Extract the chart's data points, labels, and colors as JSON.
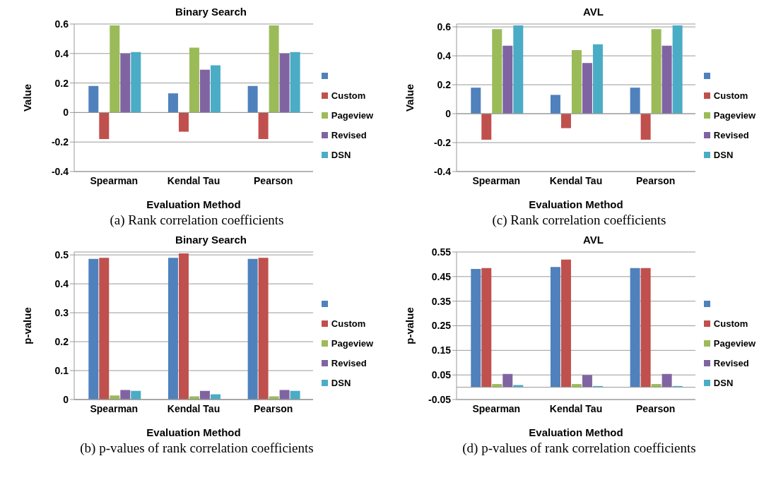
{
  "chart_data": [
    {
      "type": "bar",
      "title": "Binary Search",
      "xlabel": "Evaluation Method",
      "ylabel": "Value",
      "categories": [
        "Spearman",
        "Kendal Tau",
        "Pearson"
      ],
      "series": [
        {
          "color": "#4f81bd",
          "values": [
            0.18,
            0.13,
            0.18
          ]
        },
        {
          "name": "Custom",
          "color": "#c0504d",
          "values": [
            -0.18,
            -0.13,
            -0.18
          ]
        },
        {
          "name": "Pageview",
          "color": "#9bbb59",
          "values": [
            0.59,
            0.44,
            0.59
          ]
        },
        {
          "name": "Revised",
          "color": "#8064a2",
          "values": [
            0.4,
            0.29,
            0.4
          ]
        },
        {
          "name": "DSN",
          "color": "#4bacc6",
          "values": [
            0.41,
            0.32,
            0.41
          ]
        }
      ],
      "ylim": [
        -0.4,
        0.6
      ],
      "yticks": [
        -0.4,
        -0.2,
        0,
        0.2,
        0.4,
        0.6
      ],
      "grid": "y",
      "legend": "right",
      "annotations": [
        "(a) Rank correlation coefficients"
      ]
    },
    {
      "type": "bar",
      "title": "AVL",
      "xlabel": "Evaluation Method",
      "ylabel": "Value",
      "categories": [
        "Spearman",
        "Kendal Tau",
        "Pearson"
      ],
      "series": [
        {
          "color": "#4f81bd",
          "values": [
            0.18,
            0.13,
            0.18
          ]
        },
        {
          "name": "Custom",
          "color": "#c0504d",
          "values": [
            -0.18,
            -0.1,
            -0.18
          ]
        },
        {
          "name": "Pageview",
          "color": "#9bbb59",
          "values": [
            0.585,
            0.44,
            0.585
          ]
        },
        {
          "name": "Revised",
          "color": "#8064a2",
          "values": [
            0.47,
            0.35,
            0.47
          ]
        },
        {
          "name": "DSN",
          "color": "#4bacc6",
          "values": [
            0.61,
            0.48,
            0.61
          ]
        }
      ],
      "ylim": [
        -0.4,
        0.62
      ],
      "yticks": [
        -0.4,
        -0.2,
        0,
        0.2,
        0.4,
        0.6
      ],
      "grid": "y",
      "legend": "right",
      "annotations": [
        "(c) Rank correlation coefficients"
      ]
    },
    {
      "type": "bar",
      "title": "Binary Search",
      "xlabel": "Evaluation Method",
      "ylabel": "p-value",
      "categories": [
        "Spearman",
        "Kendal Tau",
        "Pearson"
      ],
      "series": [
        {
          "color": "#4f81bd",
          "values": [
            0.486,
            0.49,
            0.486
          ]
        },
        {
          "name": "Custom",
          "color": "#c0504d",
          "values": [
            0.49,
            0.505,
            0.49
          ]
        },
        {
          "name": "Pageview",
          "color": "#9bbb59",
          "values": [
            0.014,
            0.011,
            0.011
          ]
        },
        {
          "name": "Revised",
          "color": "#8064a2",
          "values": [
            0.033,
            0.03,
            0.033
          ]
        },
        {
          "name": "DSN",
          "color": "#4bacc6",
          "values": [
            0.03,
            0.018,
            0.03
          ]
        }
      ],
      "ylim": [
        0,
        0.51
      ],
      "yticks": [
        0,
        0.1,
        0.2,
        0.3,
        0.4,
        0.5
      ],
      "grid": "y",
      "legend": "right",
      "annotations": [
        "(b) p-values of rank correlation coefficients"
      ]
    },
    {
      "type": "bar",
      "title": "AVL",
      "xlabel": "Evaluation Method",
      "ylabel": "p-value",
      "categories": [
        "Spearman",
        "Kendal Tau",
        "Pearson"
      ],
      "series": [
        {
          "color": "#4f81bd",
          "values": [
            0.481,
            0.489,
            0.485
          ]
        },
        {
          "name": "Custom",
          "color": "#c0504d",
          "values": [
            0.485,
            0.519,
            0.485
          ]
        },
        {
          "name": "Pageview",
          "color": "#9bbb59",
          "values": [
            0.013,
            0.013,
            0.013
          ]
        },
        {
          "name": "Revised",
          "color": "#8064a2",
          "values": [
            0.054,
            0.05,
            0.054
          ]
        },
        {
          "name": "DSN",
          "color": "#4bacc6",
          "values": [
            0.009,
            0.005,
            0.005
          ]
        }
      ],
      "ylim": [
        -0.05,
        0.55
      ],
      "yticks": [
        -0.05,
        0.05,
        0.15,
        0.25,
        0.35,
        0.45,
        0.55
      ],
      "grid": "y",
      "legend": "right",
      "annotations": [
        "(d) p-values of rank correlation coefficients"
      ]
    }
  ]
}
